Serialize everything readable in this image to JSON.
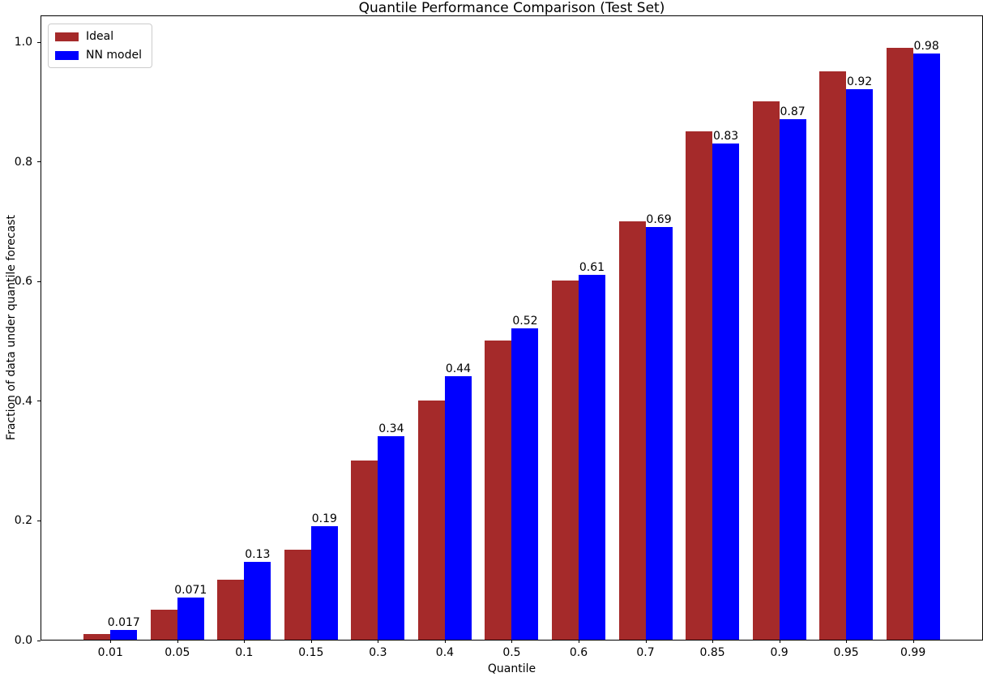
{
  "chart_data": {
    "type": "bar",
    "title": "Quantile Performance Comparison (Test Set)",
    "xlabel": "Quantile",
    "ylabel": "Fraction of data under quantile forecast",
    "categories": [
      "0.01",
      "0.05",
      "0.1",
      "0.15",
      "0.3",
      "0.4",
      "0.5",
      "0.6",
      "0.7",
      "0.85",
      "0.9",
      "0.95",
      "0.99"
    ],
    "series": [
      {
        "name": "Ideal",
        "color": "#A52A2A",
        "values": [
          0.01,
          0.05,
          0.1,
          0.15,
          0.3,
          0.4,
          0.5,
          0.6,
          0.7,
          0.85,
          0.9,
          0.95,
          0.99
        ]
      },
      {
        "name": "NN model",
        "color": "#0000FF",
        "values": [
          0.017,
          0.071,
          0.13,
          0.19,
          0.34,
          0.44,
          0.52,
          0.61,
          0.69,
          0.83,
          0.87,
          0.92,
          0.98
        ],
        "labels": [
          "0.017",
          "0.071",
          "0.13",
          "0.19",
          "0.34",
          "0.44",
          "0.52",
          "0.61",
          "0.69",
          "0.83",
          "0.87",
          "0.92",
          "0.98"
        ]
      }
    ],
    "yticks": [
      {
        "label": "0.0",
        "value": 0.0
      },
      {
        "label": "0.2",
        "value": 0.2
      },
      {
        "label": "0.4",
        "value": 0.4
      },
      {
        "label": "0.6",
        "value": 0.6
      },
      {
        "label": "0.8",
        "value": 0.8
      },
      {
        "label": "1.0",
        "value": 1.0
      }
    ],
    "ylim": [
      0,
      1.045
    ],
    "grid": false,
    "legend_position": "upper left",
    "background_color": "#ffffff",
    "spine_color": "#000000"
  }
}
